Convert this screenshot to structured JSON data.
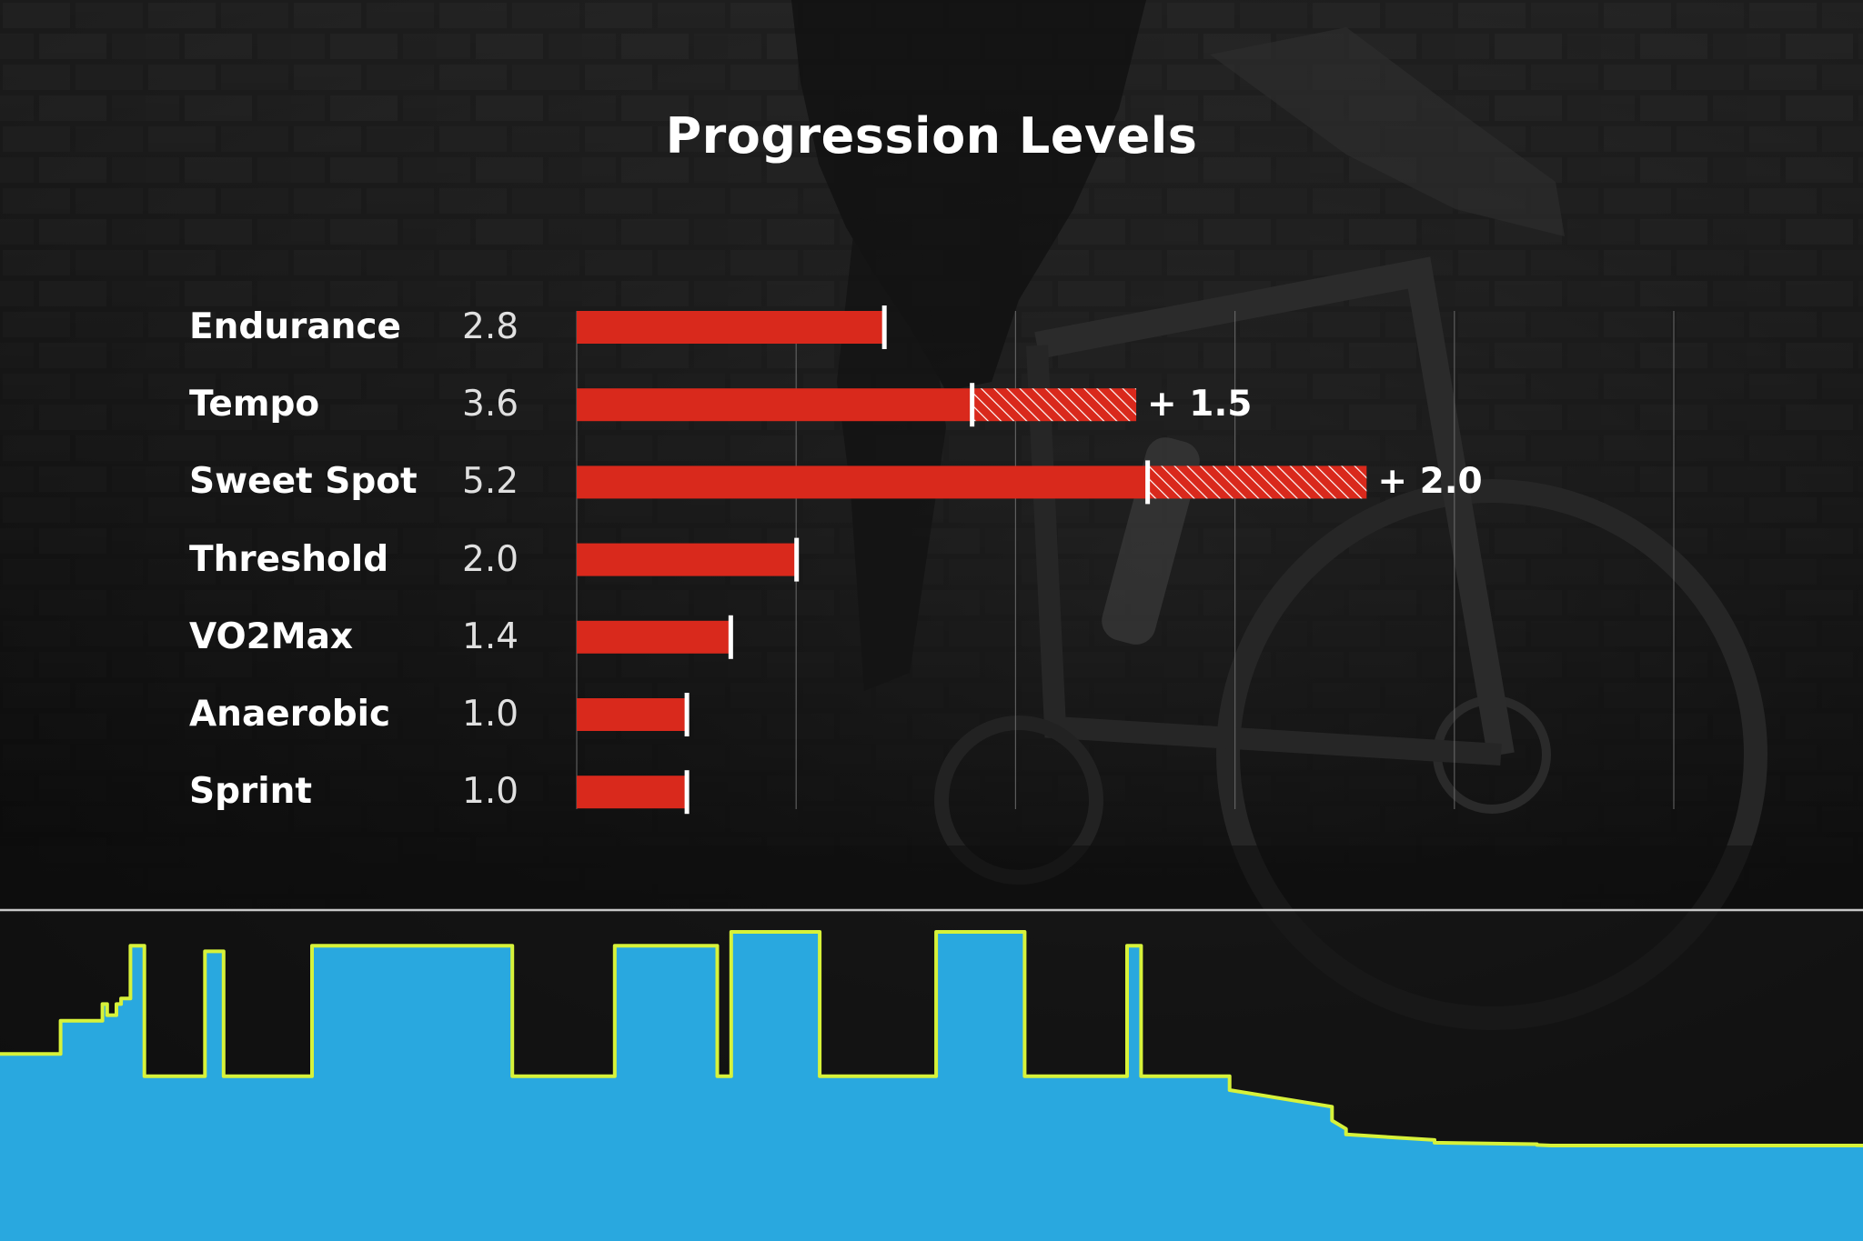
{
  "chart_data": [
    {
      "type": "bar",
      "title": "Progression Levels",
      "categories": [
        "Endurance",
        "Tempo",
        "Sweet Spot",
        "Threshold",
        "VO2Max",
        "Anaerobic",
        "Sprint"
      ],
      "values": [
        2.8,
        3.6,
        5.2,
        2.0,
        1.4,
        1.0,
        1.0
      ],
      "value_labels": [
        "2.8",
        "3.6",
        "5.2",
        "2.0",
        "1.4",
        "1.0",
        "1.0"
      ],
      "gains": [
        null,
        1.5,
        2.0,
        null,
        null,
        null,
        null
      ],
      "gain_labels": [
        "",
        "+ 1.5",
        "+ 2.0",
        "",
        "",
        "",
        ""
      ],
      "xlim": [
        0,
        10
      ],
      "grid": true,
      "colors": {
        "bar": "#d9291c",
        "gain_hatch": "#d9291c",
        "marker": "#ffffff",
        "grid": "#7a7a7a"
      }
    },
    {
      "type": "area",
      "description_of_series": "workout power profile (intervals)",
      "x": [
        0,
        6.5,
        6.5,
        11,
        11,
        11.5,
        11.5,
        12.5,
        12.5,
        13,
        13,
        14,
        14,
        15.5,
        15.5,
        17,
        17,
        22,
        22,
        24,
        24,
        33.5,
        33.5,
        55,
        55,
        56.5,
        56.5,
        66,
        66,
        77,
        77,
        78.5,
        78.5,
        88,
        88,
        99.5,
        99.5,
        100.5,
        100.5,
        110,
        110,
        121,
        121,
        122.5,
        122.5,
        132,
        132,
        143,
        143,
        144.5,
        144.5,
        154,
        154,
        165,
        165,
        166.5,
        166.5,
        176,
        176,
        187,
        187,
        188.5,
        188.5,
        200
      ],
      "y": [
        33,
        33,
        45,
        45,
        51,
        51,
        47,
        47,
        51,
        51,
        53,
        53,
        72,
        72,
        25,
        25,
        25,
        25,
        70,
        70,
        25,
        25,
        72,
        72,
        25,
        25,
        25,
        25,
        72,
        72,
        25,
        25,
        77,
        77,
        25,
        25,
        25,
        25,
        77,
        77,
        25,
        25,
        72,
        72,
        25,
        25,
        20,
        14,
        9,
        6,
        4,
        2,
        1,
        0.5,
        0.2,
        0,
        0,
        0,
        0,
        0,
        0,
        0,
        0,
        0
      ],
      "colors": {
        "fill": "#29a8df",
        "line": "#d7f23a",
        "baseline": "#c8c8c8"
      }
    }
  ]
}
